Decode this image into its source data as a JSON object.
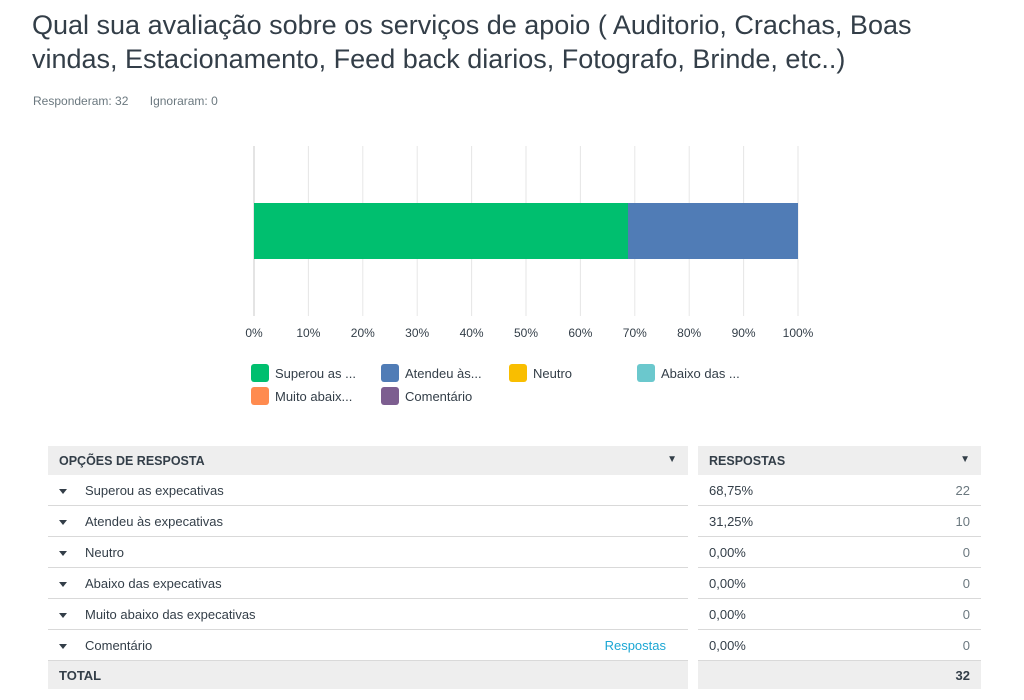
{
  "question": {
    "title": "Qual sua avaliação sobre os serviços de apoio ( Auditorio, Crachas, Boas vindas, Estacionamento, Feed back diarios, Fotografo, Brinde, etc..)",
    "answered": "Responderam: 32",
    "skipped": "Ignoraram: 0"
  },
  "chart_data": {
    "type": "bar",
    "orientation": "horizontal-stacked",
    "x_ticks": [
      "0%",
      "10%",
      "20%",
      "30%",
      "40%",
      "50%",
      "60%",
      "70%",
      "80%",
      "90%",
      "100%"
    ],
    "xlim": [
      0,
      100
    ],
    "grid": true,
    "series": [
      {
        "name": "Superou as ...",
        "value": 68.75,
        "color": "#00bf6f"
      },
      {
        "name": "Atendeu às...",
        "value": 31.25,
        "color": "#507cb6"
      },
      {
        "name": "Neutro",
        "value": 0,
        "color": "#f9be00"
      },
      {
        "name": "Abaixo das ...",
        "value": 0,
        "color": "#6bc8cd"
      },
      {
        "name": "Muito abaix...",
        "value": 0,
        "color": "#ff8b4f"
      },
      {
        "name": "Comentário",
        "value": 0,
        "color": "#7d5e90"
      }
    ]
  },
  "table": {
    "header_option": "OPÇÕES DE RESPOSTA",
    "header_responses": "RESPOSTAS",
    "link_label": "Respostas",
    "rows": [
      {
        "label": "Superou as expecativas",
        "percent": "68,75%",
        "count": "22"
      },
      {
        "label": "Atendeu às expecativas",
        "percent": "31,25%",
        "count": "10"
      },
      {
        "label": "Neutro",
        "percent": "0,00%",
        "count": "0"
      },
      {
        "label": "Abaixo das expecativas",
        "percent": "0,00%",
        "count": "0"
      },
      {
        "label": "Muito abaixo das expecativas",
        "percent": "0,00%",
        "count": "0"
      },
      {
        "label": "Comentário",
        "percent": "0,00%",
        "count": "0"
      }
    ],
    "total_label": "TOTAL",
    "total_count": "32"
  }
}
